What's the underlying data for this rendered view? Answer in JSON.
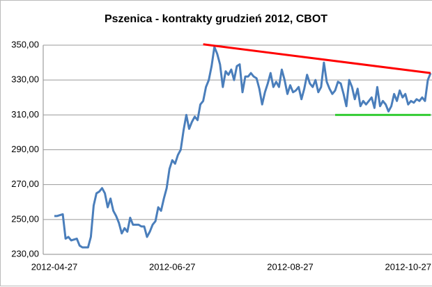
{
  "chart_data": {
    "type": "line",
    "title": "Pszenica - kontrakty grudzień 2012, CBOT",
    "categories": [
      "2012-04-27",
      null,
      null,
      null,
      null,
      null,
      null,
      null,
      null,
      null,
      null,
      null,
      null,
      null,
      null,
      null,
      null,
      null,
      null,
      null,
      null,
      null,
      null,
      null,
      null,
      null,
      null,
      null,
      null,
      null,
      null,
      null,
      null,
      null,
      null,
      null,
      null,
      null,
      null,
      null,
      null,
      null,
      "2012-06-27",
      null,
      null,
      null,
      null,
      null,
      null,
      null,
      null,
      null,
      null,
      null,
      null,
      null,
      null,
      null,
      null,
      null,
      null,
      null,
      null,
      null,
      null,
      null,
      null,
      null,
      null,
      null,
      null,
      null,
      null,
      null,
      null,
      null,
      null,
      null,
      null,
      null,
      null,
      null,
      null,
      null,
      "2012-08-27",
      null,
      null,
      null,
      null,
      null,
      null,
      null,
      null,
      null,
      null,
      null,
      null,
      null,
      null,
      null,
      null,
      null,
      null,
      null,
      null,
      null,
      null,
      null,
      null,
      null,
      null,
      null,
      null,
      null,
      null,
      null,
      null,
      null,
      null,
      null,
      null,
      null,
      null,
      null,
      null,
      null,
      "2012-10-27",
      null,
      null,
      null,
      null,
      null,
      null,
      null,
      null
    ],
    "series": [
      {
        "color": "#4a7ebb",
        "values": [
          252,
          252,
          252.5,
          253,
          239,
          240,
          238,
          238.5,
          239,
          235,
          234,
          234,
          234,
          240,
          258,
          265,
          266,
          268,
          265,
          257,
          262,
          255,
          252,
          248,
          242,
          245,
          243,
          251,
          247,
          247,
          247,
          246,
          246,
          240,
          243,
          247,
          249,
          257,
          255,
          262,
          268,
          279,
          284,
          282,
          287,
          290,
          301,
          310,
          302,
          306,
          309,
          307,
          316,
          318,
          326,
          330,
          338,
          349,
          345,
          339,
          326,
          335,
          333,
          336,
          330,
          338,
          339,
          323,
          332,
          332,
          334,
          332,
          331,
          325,
          316,
          323,
          328,
          334,
          326,
          329,
          326,
          336,
          330,
          322,
          327,
          323,
          324,
          326,
          319,
          325,
          333,
          328,
          326,
          330,
          323,
          326,
          340,
          329,
          325,
          322,
          324,
          329,
          328,
          322,
          315,
          330,
          326,
          319,
          325,
          315,
          318,
          316,
          318,
          320,
          314,
          326,
          315,
          318,
          316,
          312,
          315,
          322,
          318,
          324,
          320,
          322,
          316,
          318,
          317,
          319,
          318,
          320,
          318,
          330,
          334
        ]
      }
    ],
    "trend_lines": [
      {
        "color": "#ff0000",
        "x": [
          53,
          134
        ],
        "values": [
          350.5,
          334
        ]
      },
      {
        "color": "#33cc33",
        "x": [
          100,
          134
        ],
        "values": [
          310,
          310
        ]
      }
    ],
    "ylim": [
      230,
      350
    ],
    "yticks": [
      {
        "value": 230,
        "label": "230,00"
      },
      {
        "value": 250,
        "label": "250,00"
      },
      {
        "value": 270,
        "label": "270,00"
      },
      {
        "value": 290,
        "label": "290,00"
      },
      {
        "value": 310,
        "label": "310,00"
      },
      {
        "value": 330,
        "label": "330,00"
      },
      {
        "value": 350,
        "label": "350,00"
      }
    ],
    "grid": true
  }
}
